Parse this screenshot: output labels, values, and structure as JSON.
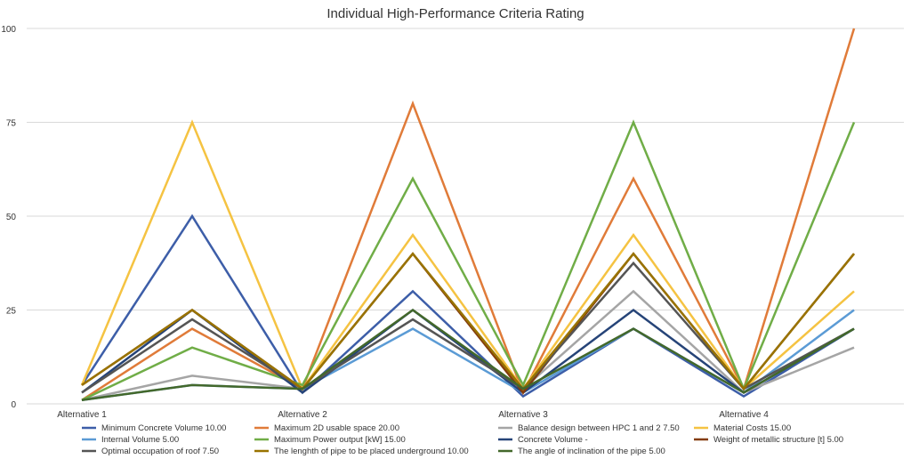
{
  "chart_data": {
    "type": "line",
    "title": "Individual High-Performance Criteria Rating",
    "xlabel": "",
    "ylabel": "",
    "ylim": [
      0,
      100
    ],
    "yticks": [
      0,
      25,
      50,
      75,
      100
    ],
    "grid": true,
    "legend_position": "bottom",
    "x_tick_labels": [
      "Alternative 1",
      "Alternative 2",
      "Alternative 3",
      "Alternative 4"
    ],
    "x_points": 9,
    "series": [
      {
        "name": "Minimum Concrete Volume  10.00",
        "color": "#3d5ea8",
        "values": [
          5,
          50,
          3,
          30,
          2,
          20,
          2,
          20,
          null
        ]
      },
      {
        "name": "Maximum 2D usable space  20.00",
        "color": "#e07b39",
        "values": [
          1,
          20,
          4,
          80,
          3,
          60,
          4,
          100,
          null
        ]
      },
      {
        "name": "Balance design between HPC 1 and 2 7.50",
        "color": "#a5a5a5",
        "values": [
          1,
          7.5,
          4,
          22.5,
          4,
          30,
          3,
          15,
          null
        ]
      },
      {
        "name": "Material Costs 15.00",
        "color": "#f5c342",
        "values": [
          5,
          75,
          4,
          45,
          4,
          45,
          4,
          30,
          null
        ]
      },
      {
        "name": "Internal Volume  5.00",
        "color": "#5b9bd5",
        "values": [
          1,
          5,
          4,
          20,
          3,
          20,
          3,
          25,
          null
        ]
      },
      {
        "name": "Maximum Power output [kW] 15.00",
        "color": "#70ad47",
        "values": [
          1,
          15,
          5,
          60,
          5,
          75,
          4,
          75,
          null
        ]
      },
      {
        "name": "Concrete Volume  -",
        "color": "#264478",
        "values": [
          3,
          25,
          3,
          25,
          3,
          25,
          3,
          20,
          null
        ]
      },
      {
        "name": "Weight of metallic structure [t] 5.00",
        "color": "#843c0c",
        "values": [
          5,
          25,
          4,
          40,
          3,
          40,
          4,
          40,
          null
        ]
      },
      {
        "name": "Optimal occupation of roof  7.50",
        "color": "#555555",
        "values": [
          3,
          22.5,
          4,
          22.5,
          4,
          37.5,
          4,
          20,
          null
        ]
      },
      {
        "name": "The lenghth of pipe to be placed underground  10.00",
        "color": "#997300",
        "values": [
          5,
          25,
          4,
          40,
          4,
          40,
          4,
          40,
          null
        ]
      },
      {
        "name": "The angle of inclination of the pipe  5.00",
        "color": "#43682b",
        "values": [
          1,
          5,
          4,
          25,
          4,
          20,
          3,
          20,
          null
        ]
      }
    ]
  }
}
